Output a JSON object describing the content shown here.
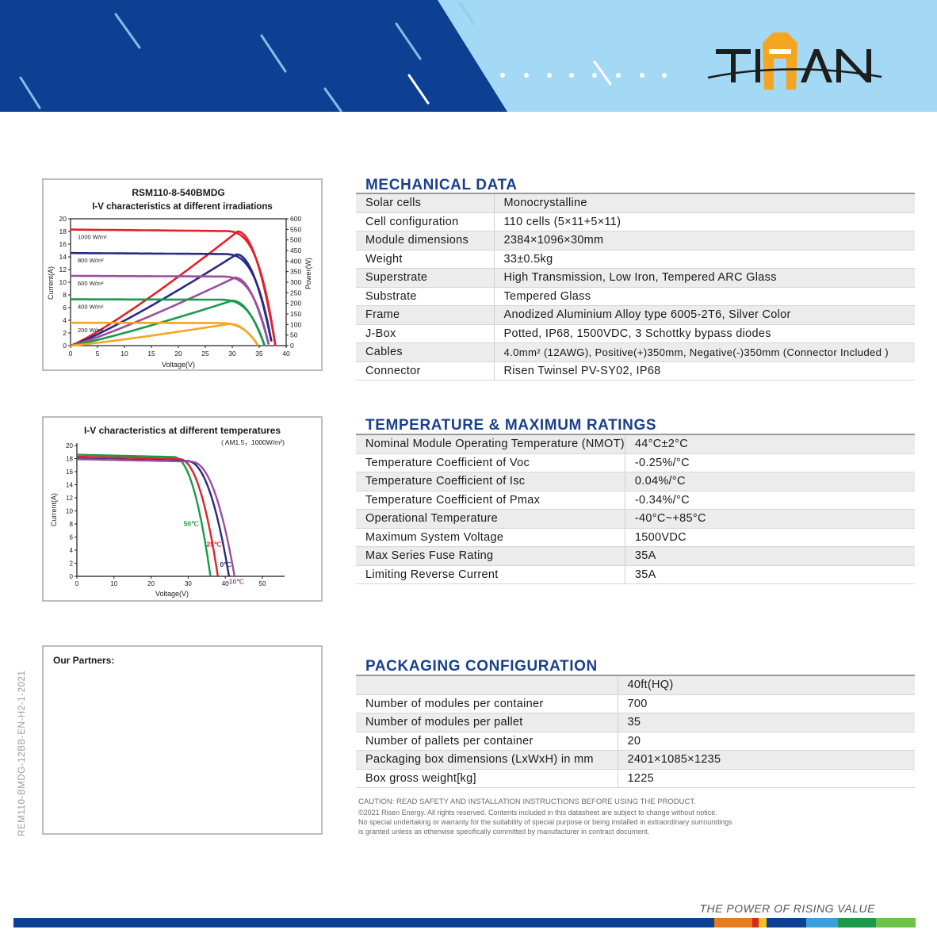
{
  "header": {
    "logo_text": "TITAN"
  },
  "iv_irradiance": {
    "model": "RSM110-8-540BMDG",
    "title": "I-V characteristics at different irradiations",
    "ylabel_left": "Current(A)",
    "ylabel_right": "Power(W)",
    "xlabel": "Voltage(V)",
    "x_ticks": [
      "0",
      "5",
      "10",
      "15",
      "20",
      "25",
      "30",
      "35",
      "40"
    ],
    "y_left_ticks": [
      "0",
      "2",
      "4",
      "6",
      "8",
      "10",
      "12",
      "14",
      "16",
      "18",
      "20"
    ],
    "y_right_ticks": [
      "0",
      "50",
      "100",
      "150",
      "200",
      "250",
      "300",
      "350",
      "400",
      "450",
      "500",
      "550",
      "600"
    ],
    "curve_labels": [
      "1000 W/m²",
      "800 W/m²",
      "600 W/m²",
      "400 W/m²",
      "200 W/m²"
    ]
  },
  "iv_temperature": {
    "title": "I-V characteristics at different temperatures",
    "subtitle": "( AM1.5，1000W/m²)",
    "ylabel": "Current(A)",
    "xlabel": "Voltage(V)",
    "x_ticks": [
      "0",
      "10",
      "20",
      "30",
      "40",
      "50"
    ],
    "y_ticks": [
      "0",
      "2",
      "4",
      "6",
      "8",
      "10",
      "12",
      "14",
      "16",
      "18",
      "20"
    ],
    "curve_labels": [
      "50℃",
      "25℃",
      "0℃",
      "-10℃"
    ]
  },
  "chart_data": [
    {
      "type": "line",
      "title": "RSM110-8-540BMDG I-V characteristics at different irradiations",
      "xlabel": "Voltage(V)",
      "ylabel": "Current(A)",
      "y2label": "Power(W)",
      "xlim": [
        0,
        40
      ],
      "ylim": [
        0,
        20
      ],
      "y2lim": [
        0,
        600
      ],
      "series": [
        {
          "name": "1000 W/m²",
          "isc": 18.3,
          "voc": 38.0,
          "vmp": 31.0,
          "imp": 17.4,
          "pmax": 540,
          "color": "#e3212b"
        },
        {
          "name": "800 W/m²",
          "isc": 14.6,
          "voc": 37.4,
          "vmp": 30.8,
          "imp": 14.0,
          "pmax": 432,
          "color": "#2a2a86"
        },
        {
          "name": "600 W/m²",
          "isc": 11.0,
          "voc": 36.8,
          "vmp": 30.5,
          "imp": 10.6,
          "pmax": 322,
          "color": "#9b4f9d"
        },
        {
          "name": "400 W/m²",
          "isc": 7.3,
          "voc": 36.0,
          "vmp": 30.0,
          "imp": 7.1,
          "pmax": 213,
          "color": "#1b9a4a"
        },
        {
          "name": "200 W/m²",
          "isc": 3.6,
          "voc": 34.8,
          "vmp": 29.5,
          "imp": 3.5,
          "pmax": 103,
          "color": "#f4a521"
        }
      ]
    },
    {
      "type": "line",
      "title": "I-V characteristics at different temperatures",
      "subtitle": "AM1.5, 1000W/m²",
      "xlabel": "Voltage(V)",
      "ylabel": "Current(A)",
      "xlim": [
        0,
        50
      ],
      "ylim": [
        0,
        20
      ],
      "series": [
        {
          "name": "50℃",
          "isc": 18.6,
          "voc": 36.0,
          "color": "#1b9a4a"
        },
        {
          "name": "25℃",
          "isc": 18.3,
          "voc": 38.0,
          "color": "#e3212b"
        },
        {
          "name": "0℃",
          "isc": 18.0,
          "voc": 41.0,
          "color": "#2a2a86"
        },
        {
          "name": "-10℃",
          "isc": 17.9,
          "voc": 42.5,
          "color": "#9b4f9d"
        }
      ]
    }
  ],
  "mechanical": {
    "title": "MECHANICAL DATA",
    "rows": [
      [
        "Solar cells",
        "Monocrystalline"
      ],
      [
        "Cell configuration",
        "110 cells (5×11+5×11)"
      ],
      [
        "Module dimensions",
        "2384×1096×30mm"
      ],
      [
        "Weight",
        "33±0.5kg"
      ],
      [
        "Superstrate",
        "High Transmission, Low Iron, Tempered ARC Glass"
      ],
      [
        "Substrate",
        "Tempered Glass"
      ],
      [
        "Frame",
        "Anodized Aluminium Alloy type 6005-2T6, Silver Color"
      ],
      [
        "J-Box",
        "Potted, IP68, 1500VDC, 3 Schottky bypass diodes"
      ],
      [
        "Cables",
        "4.0mm² (12AWG), Positive(+)350mm, Negative(-)350mm (Connector Included )"
      ],
      [
        "Connector",
        "Risen Twinsel PV-SY02, IP68"
      ]
    ]
  },
  "temperature": {
    "title": "TEMPERATURE & MAXIMUM RATINGS",
    "rows": [
      [
        "Nominal Module Operating Temperature (NMOT)",
        "44°C±2°C"
      ],
      [
        "Temperature Coefficient of Voc",
        "-0.25%/°C"
      ],
      [
        "Temperature Coefficient of Isc",
        "0.04%/°C"
      ],
      [
        "Temperature Coefficient of Pmax",
        "-0.34%/°C"
      ],
      [
        "Operational Temperature",
        "-40°C~+85°C"
      ],
      [
        "Maximum System Voltage",
        "1500VDC"
      ],
      [
        "Max Series Fuse Rating",
        "35A"
      ],
      [
        "Limiting Reverse Current",
        "35A"
      ]
    ]
  },
  "packaging": {
    "title": "PACKAGING CONFIGURATION",
    "rows": [
      [
        "",
        "40ft(HQ)"
      ],
      [
        "Number of modules per container",
        "700"
      ],
      [
        "Number of modules per pallet",
        "35"
      ],
      [
        "Number of pallets per container",
        "20"
      ],
      [
        "Packaging box dimensions (LxWxH) in mm",
        "2401×1085×1235"
      ],
      [
        "Box gross weight[kg]",
        "1225"
      ]
    ]
  },
  "partners": {
    "label": "Our Partners:"
  },
  "notes": {
    "caution": "CAUTION: READ SAFETY AND INSTALLATION INSTRUCTIONS BEFORE USING THE PRODUCT.",
    "copyright": "©2021 Risen Energy. All rights reserved. Contents included in this datasheet are subject to change without notice.",
    "warranty_1": "No special undertaking or warranty for the suitability of special purpose or being installed in extraordinary surroundings",
    "warranty_2": "is granted unless as otherwise specifically committed by manufacturer in contract document."
  },
  "doc_id": "REM110-BMDG-12BB-EN-H2-1-2021",
  "tagline": "THE POWER OF RISING VALUE",
  "colors": {
    "navy": "#0d3f93",
    "sky": "#9fd6f2",
    "title_blue": "#1a3f8f"
  }
}
